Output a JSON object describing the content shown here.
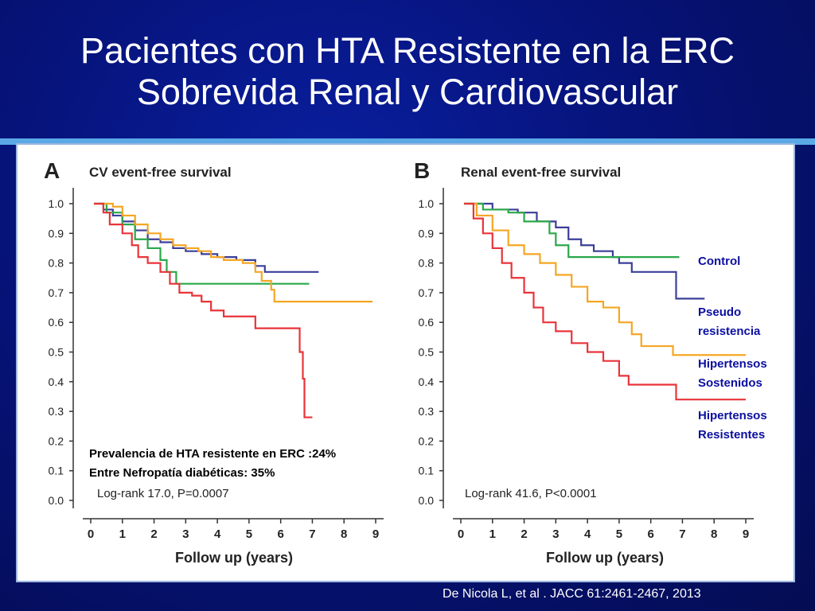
{
  "slide": {
    "title_line1": "Pacientes con HTA Resistente en la ERC",
    "title_line2": "Sobrevida Renal y Cardiovascular",
    "citation": "De Nicola L, et al . JACC 61:2461-2467, 2013",
    "note_line1": "Prevalencia de HTA resistente en ERC :24%",
    "note_line2": "Entre Nefropatía diabéticas: 35%"
  },
  "legend": [
    "Control",
    "Pseudo",
    "resistencia",
    "Hipertensos",
    "Sostenidos",
    "Hipertensos",
    "Resistentes"
  ],
  "colors": {
    "control": "#2aa84a",
    "pseudo": "#3b3f99",
    "sustained": "#f5a623",
    "resistant": "#e8343a"
  },
  "chart_data": [
    {
      "type": "line",
      "panel_letter": "A",
      "title": "CV event-free survival",
      "xlabel": "Follow up (years)",
      "ylabel": "",
      "xlim": [
        0,
        9
      ],
      "ylim": [
        0,
        1
      ],
      "x_ticks": [
        "0",
        "1",
        "2",
        "3",
        "4",
        "5",
        "6",
        "7",
        "8",
        "9"
      ],
      "y_ticks": [
        "0.0",
        "0.1",
        "0.2",
        "0.3",
        "0.4",
        "0.5",
        "0.6",
        "0.7",
        "0.8",
        "0.9",
        "1.0"
      ],
      "annotation": "Log-rank 17.0, P=0.0007",
      "step": true,
      "series": [
        {
          "key": "pseudo",
          "points": [
            [
              0.1,
              1.0
            ],
            [
              0.4,
              0.98
            ],
            [
              0.7,
              0.96
            ],
            [
              1.0,
              0.94
            ],
            [
              1.4,
              0.91
            ],
            [
              1.8,
              0.88
            ],
            [
              2.2,
              0.87
            ],
            [
              2.6,
              0.85
            ],
            [
              3.0,
              0.84
            ],
            [
              3.5,
              0.83
            ],
            [
              4.0,
              0.82
            ],
            [
              4.6,
              0.81
            ],
            [
              5.2,
              0.79
            ],
            [
              5.5,
              0.77
            ],
            [
              6.2,
              0.77
            ],
            [
              7.2,
              0.77
            ]
          ]
        },
        {
          "key": "control",
          "points": [
            [
              0.1,
              1.0
            ],
            [
              0.5,
              0.97
            ],
            [
              1.0,
              0.93
            ],
            [
              1.4,
              0.88
            ],
            [
              1.8,
              0.85
            ],
            [
              2.2,
              0.81
            ],
            [
              2.4,
              0.77
            ],
            [
              2.7,
              0.73
            ],
            [
              3.5,
              0.73
            ],
            [
              5.0,
              0.73
            ],
            [
              6.9,
              0.73
            ]
          ]
        },
        {
          "key": "sustained",
          "points": [
            [
              0.1,
              1.0
            ],
            [
              0.7,
              0.99
            ],
            [
              1.0,
              0.96
            ],
            [
              1.4,
              0.93
            ],
            [
              1.8,
              0.9
            ],
            [
              2.2,
              0.88
            ],
            [
              2.6,
              0.86
            ],
            [
              3.0,
              0.85
            ],
            [
              3.4,
              0.84
            ],
            [
              3.8,
              0.82
            ],
            [
              4.2,
              0.81
            ],
            [
              4.8,
              0.8
            ],
            [
              5.2,
              0.77
            ],
            [
              5.4,
              0.74
            ],
            [
              5.7,
              0.71
            ],
            [
              5.8,
              0.67
            ],
            [
              6.2,
              0.67
            ],
            [
              7.5,
              0.67
            ],
            [
              8.9,
              0.67
            ]
          ]
        },
        {
          "key": "resistant",
          "points": [
            [
              0.1,
              1.0
            ],
            [
              0.4,
              0.97
            ],
            [
              0.6,
              0.93
            ],
            [
              1.0,
              0.9
            ],
            [
              1.3,
              0.86
            ],
            [
              1.5,
              0.82
            ],
            [
              1.8,
              0.8
            ],
            [
              2.2,
              0.77
            ],
            [
              2.5,
              0.73
            ],
            [
              2.8,
              0.7
            ],
            [
              3.2,
              0.69
            ],
            [
              3.5,
              0.67
            ],
            [
              3.8,
              0.64
            ],
            [
              4.2,
              0.62
            ],
            [
              5.2,
              0.58
            ],
            [
              6.5,
              0.58
            ],
            [
              6.6,
              0.5
            ],
            [
              6.7,
              0.41
            ],
            [
              6.75,
              0.28
            ],
            [
              7.0,
              0.28
            ]
          ]
        }
      ]
    },
    {
      "type": "line",
      "panel_letter": "B",
      "title": "Renal event-free survival",
      "xlabel": "Follow up (years)",
      "ylabel": "",
      "xlim": [
        0,
        9
      ],
      "ylim": [
        0,
        1
      ],
      "x_ticks": [
        "0",
        "1",
        "2",
        "3",
        "4",
        "5",
        "6",
        "7",
        "8",
        "9"
      ],
      "y_ticks": [
        "0.0",
        "0.1",
        "0.2",
        "0.3",
        "0.4",
        "0.5",
        "0.6",
        "0.7",
        "0.8",
        "0.9",
        "1.0"
      ],
      "annotation": "Log-rank 41.6, P<0.0001",
      "step": true,
      "series": [
        {
          "key": "pseudo",
          "points": [
            [
              0.1,
              1.0
            ],
            [
              0.6,
              1.0
            ],
            [
              1.0,
              0.98
            ],
            [
              1.8,
              0.97
            ],
            [
              2.4,
              0.94
            ],
            [
              3.0,
              0.92
            ],
            [
              3.4,
              0.88
            ],
            [
              3.8,
              0.86
            ],
            [
              4.2,
              0.84
            ],
            [
              4.8,
              0.82
            ],
            [
              5.0,
              0.8
            ],
            [
              5.4,
              0.77
            ],
            [
              6.8,
              0.77
            ],
            [
              6.8,
              0.68
            ],
            [
              7.7,
              0.68
            ]
          ]
        },
        {
          "key": "control",
          "points": [
            [
              0.1,
              1.0
            ],
            [
              0.7,
              0.98
            ],
            [
              1.5,
              0.97
            ],
            [
              2.0,
              0.94
            ],
            [
              2.8,
              0.9
            ],
            [
              3.0,
              0.86
            ],
            [
              3.4,
              0.82
            ],
            [
              5.0,
              0.82
            ],
            [
              6.9,
              0.82
            ]
          ]
        },
        {
          "key": "sustained",
          "points": [
            [
              0.1,
              1.0
            ],
            [
              0.5,
              0.96
            ],
            [
              1.0,
              0.91
            ],
            [
              1.5,
              0.86
            ],
            [
              2.0,
              0.83
            ],
            [
              2.5,
              0.8
            ],
            [
              3.0,
              0.76
            ],
            [
              3.5,
              0.72
            ],
            [
              4.0,
              0.67
            ],
            [
              4.5,
              0.65
            ],
            [
              5.0,
              0.6
            ],
            [
              5.4,
              0.56
            ],
            [
              5.7,
              0.52
            ],
            [
              6.5,
              0.52
            ],
            [
              6.7,
              0.49
            ],
            [
              7.5,
              0.49
            ],
            [
              9.0,
              0.49
            ]
          ]
        },
        {
          "key": "resistant",
          "points": [
            [
              0.1,
              1.0
            ],
            [
              0.4,
              0.95
            ],
            [
              0.7,
              0.9
            ],
            [
              1.0,
              0.85
            ],
            [
              1.3,
              0.8
            ],
            [
              1.6,
              0.75
            ],
            [
              2.0,
              0.7
            ],
            [
              2.3,
              0.65
            ],
            [
              2.6,
              0.6
            ],
            [
              3.0,
              0.57
            ],
            [
              3.5,
              0.53
            ],
            [
              4.0,
              0.5
            ],
            [
              4.5,
              0.47
            ],
            [
              5.0,
              0.42
            ],
            [
              5.3,
              0.39
            ],
            [
              6.8,
              0.39
            ],
            [
              6.8,
              0.34
            ],
            [
              7.5,
              0.34
            ],
            [
              9.0,
              0.34
            ]
          ]
        }
      ]
    }
  ]
}
